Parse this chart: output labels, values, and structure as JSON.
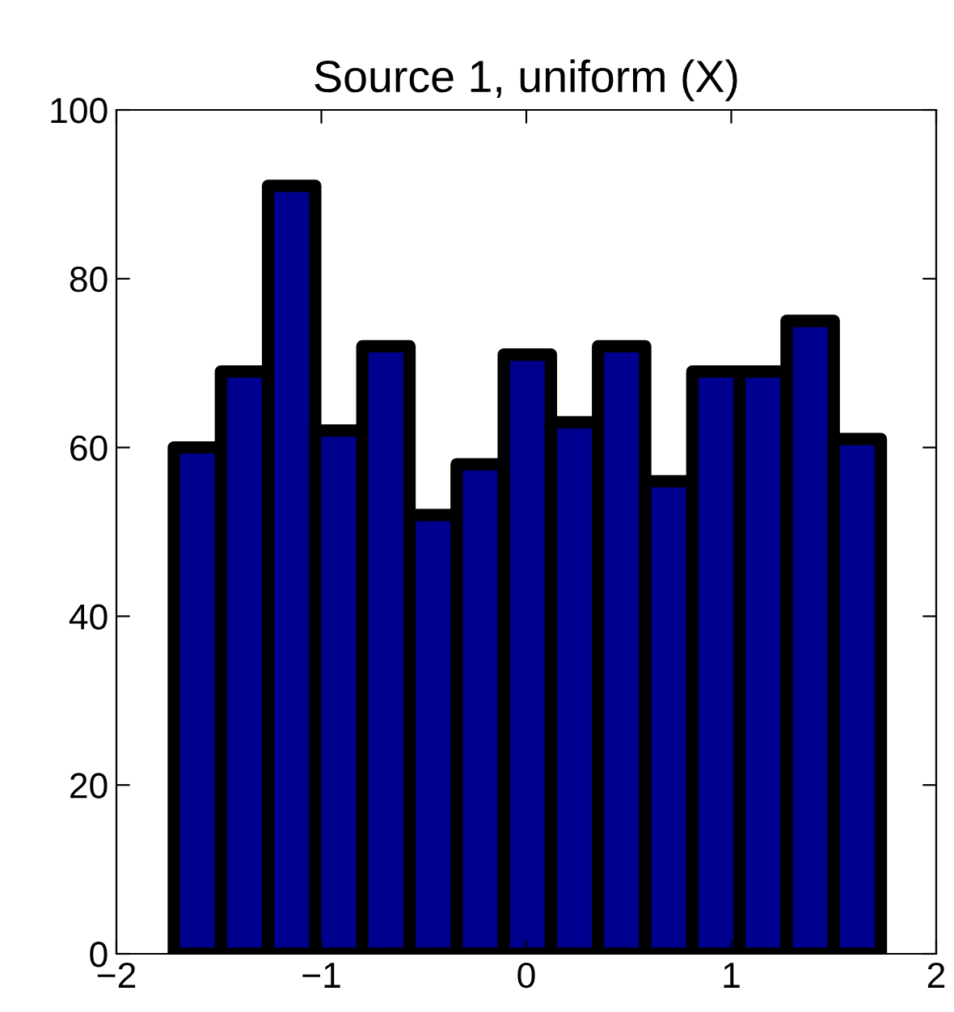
{
  "chart_data": {
    "type": "histogram",
    "title": "Source 1, uniform (X)",
    "bins": [
      -1.72,
      -1.49,
      -1.26,
      -1.03,
      -0.8,
      -0.57,
      -0.34,
      -0.11,
      0.12,
      0.35,
      0.58,
      0.81,
      1.04,
      1.27,
      1.5,
      1.73
    ],
    "values": [
      60,
      69,
      91,
      62,
      72,
      52,
      58,
      71,
      63,
      72,
      56,
      69,
      69,
      75,
      61
    ],
    "color": "#00008f",
    "xlim": [
      -2,
      2
    ],
    "xticks": [
      -2,
      -1,
      0,
      1,
      2
    ],
    "ylim": [
      0,
      100
    ],
    "yticks": [
      0,
      20,
      40,
      60,
      80,
      100
    ],
    "grid": false
  }
}
